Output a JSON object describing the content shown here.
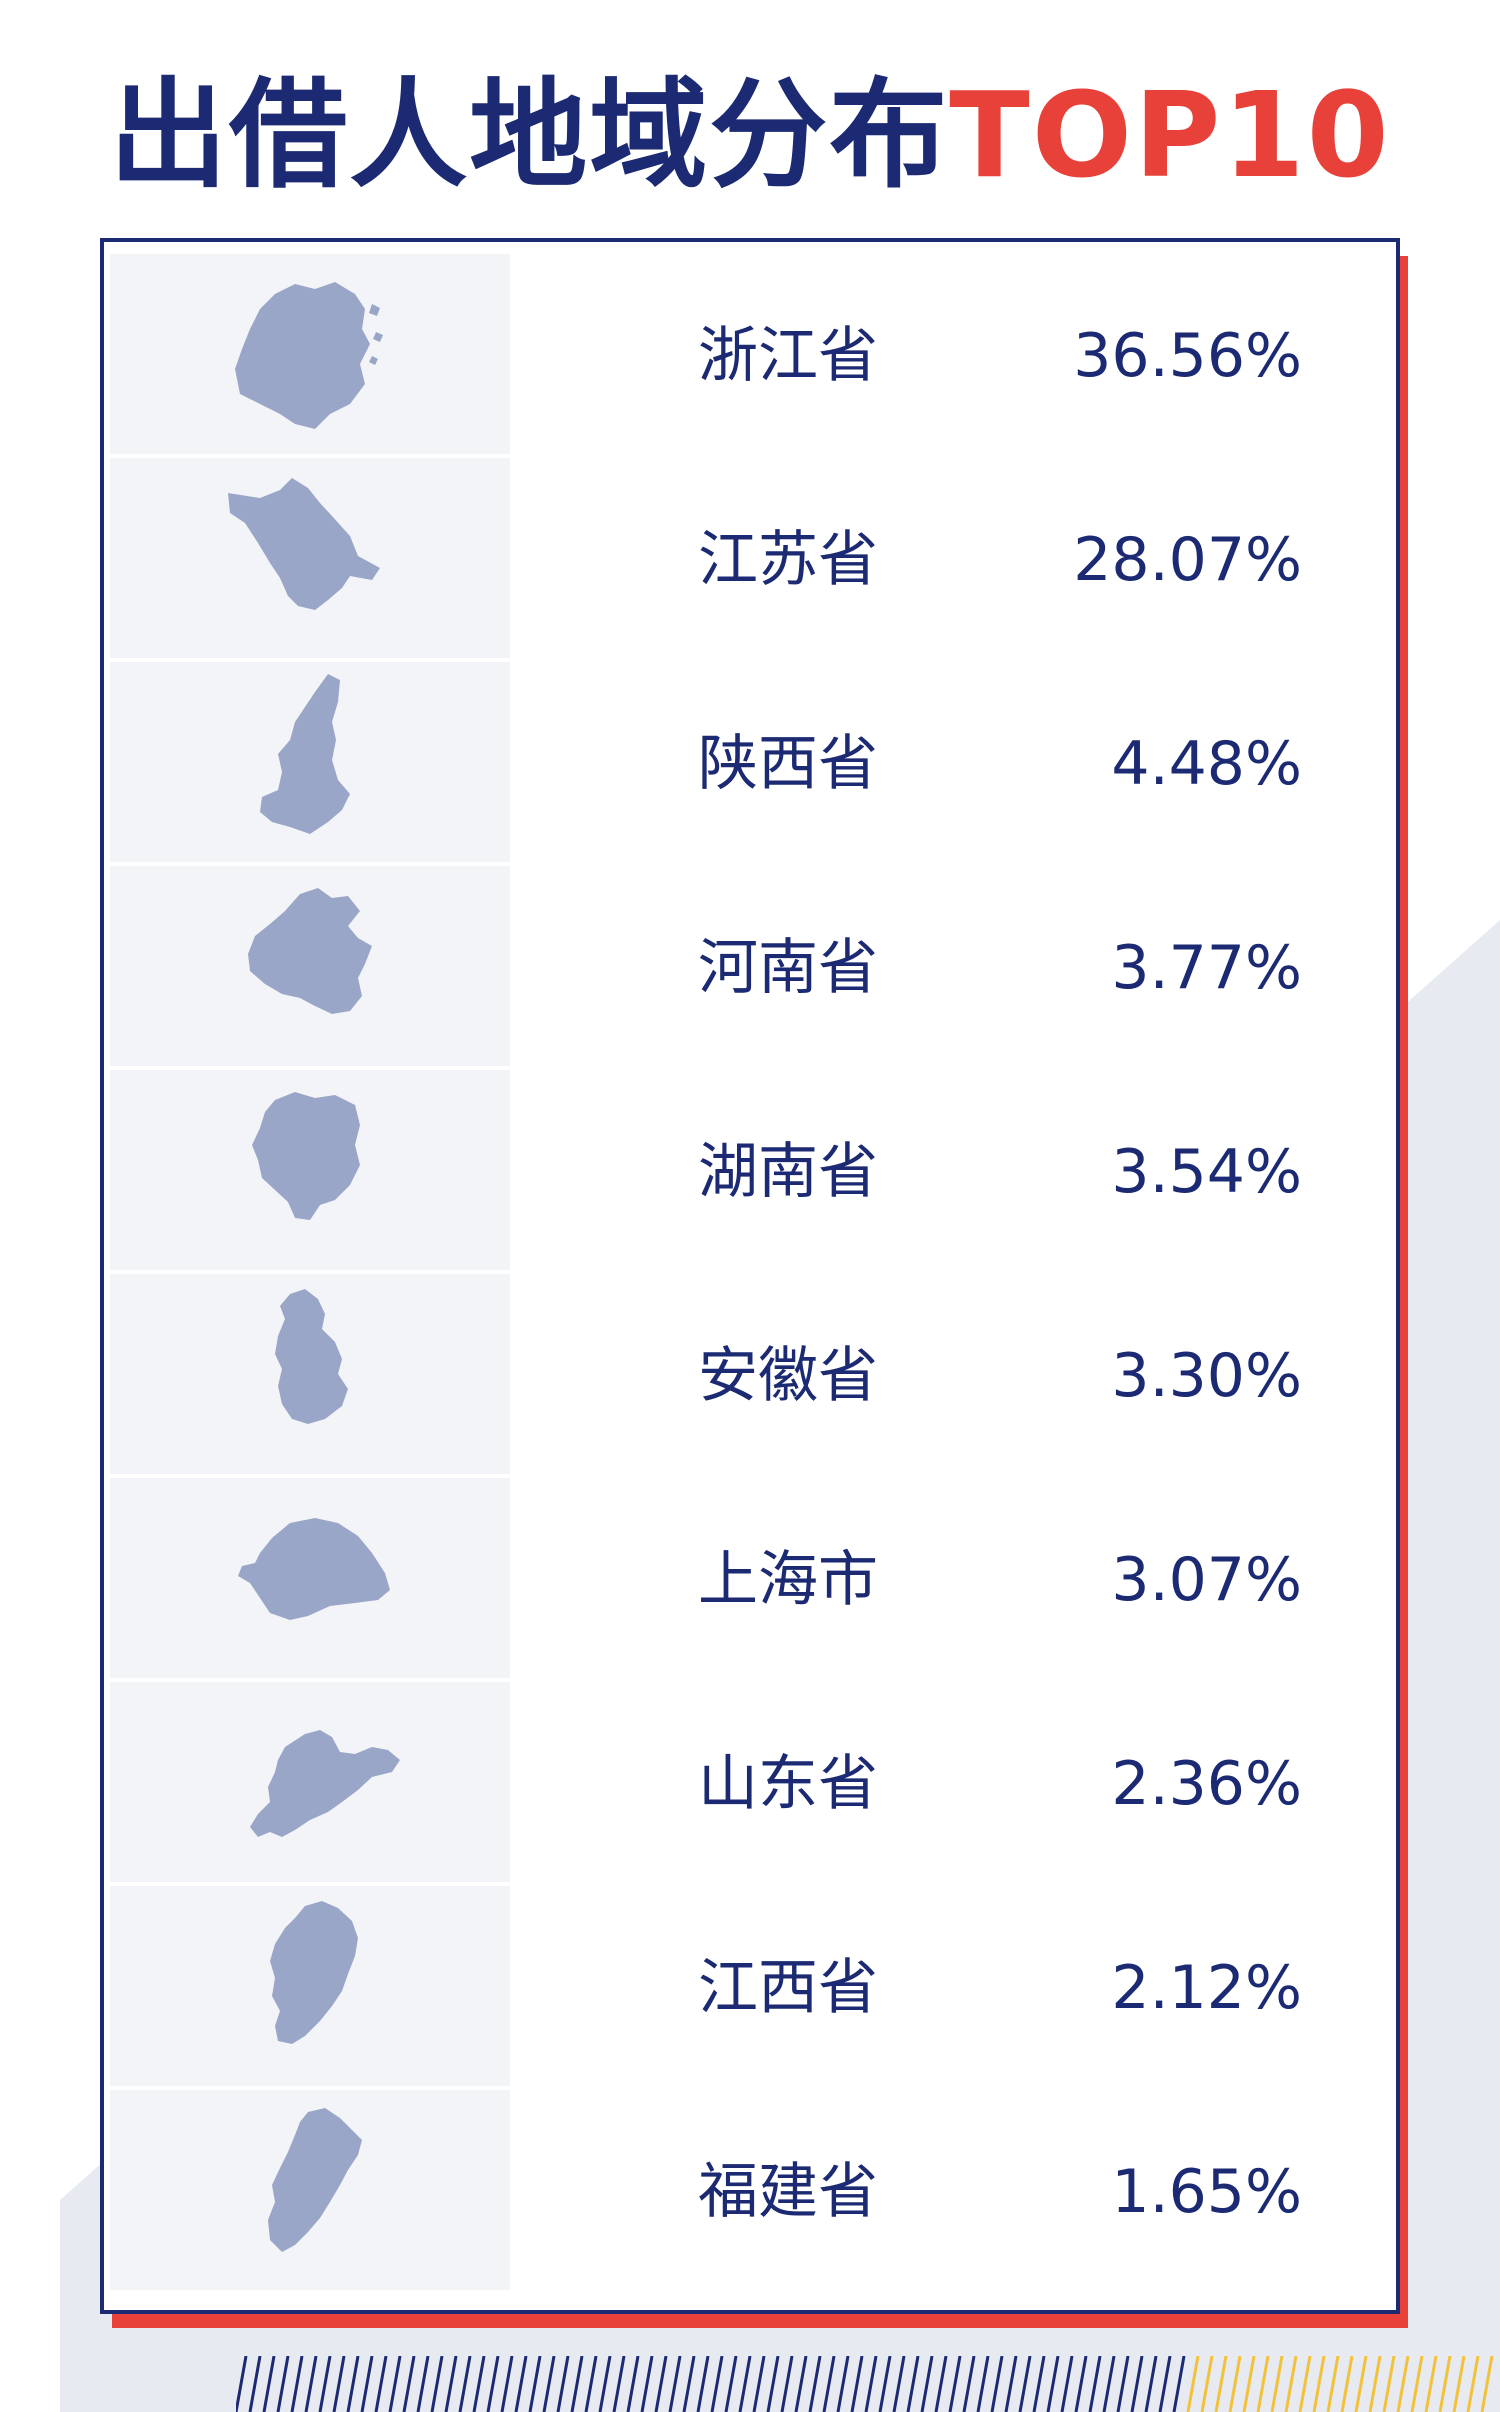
{
  "title": {
    "main": "出借人地域分布",
    "accent": "TOP10"
  },
  "colors": {
    "primary": "#1b2a72",
    "accent": "#e8413a",
    "map_fill": "#9aa6c8",
    "thumb_bg": "#f3f4f8",
    "decor_gray": "#e8eaf2",
    "stripe_yellow": "#f2c23a"
  },
  "rows": [
    {
      "province": "浙江省",
      "percent": "36.56%",
      "icon": "zhejiang-map-icon"
    },
    {
      "province": "江苏省",
      "percent": "28.07%",
      "icon": "jiangsu-map-icon"
    },
    {
      "province": "陕西省",
      "percent": "4.48%",
      "icon": "shaanxi-map-icon"
    },
    {
      "province": "河南省",
      "percent": "3.77%",
      "icon": "henan-map-icon"
    },
    {
      "province": "湖南省",
      "percent": "3.54%",
      "icon": "hunan-map-icon"
    },
    {
      "province": "安徽省",
      "percent": "3.30%",
      "icon": "anhui-map-icon"
    },
    {
      "province": "上海市",
      "percent": "3.07%",
      "icon": "shanghai-map-icon"
    },
    {
      "province": "山东省",
      "percent": "2.36%",
      "icon": "shandong-map-icon"
    },
    {
      "province": "江西省",
      "percent": "2.12%",
      "icon": "jiangxi-map-icon"
    },
    {
      "province": "福建省",
      "percent": "1.65%",
      "icon": "fujian-map-icon"
    }
  ]
}
